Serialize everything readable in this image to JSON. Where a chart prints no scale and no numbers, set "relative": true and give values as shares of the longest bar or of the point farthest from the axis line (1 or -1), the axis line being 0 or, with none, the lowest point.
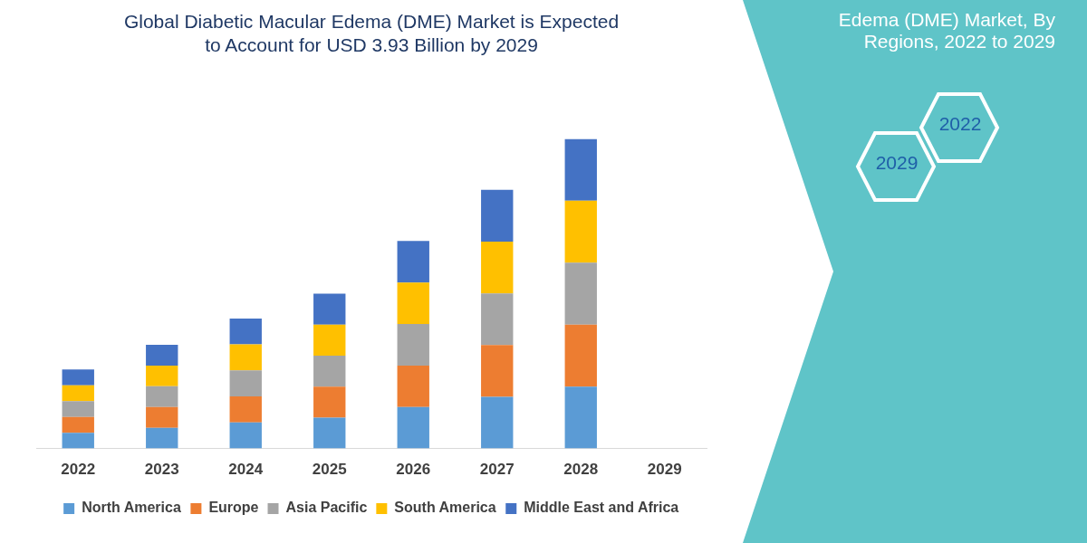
{
  "chart_data": {
    "type": "bar",
    "title": "Global Diabetic Macular Edema (DME) Market is Expected to Account for USD 3.93 Billion by 2029",
    "categories": [
      "2022",
      "2023",
      "2024",
      "2025",
      "2026",
      "2027",
      "2028",
      "2029"
    ],
    "stacked": true,
    "relative": true,
    "grid": false,
    "legend": "bottom",
    "series": [
      {
        "name": "North America",
        "color": "#5b9bd5",
        "values": [
          0.051,
          0.067,
          0.084,
          0.1,
          0.134,
          0.167,
          0.2,
          null
        ]
      },
      {
        "name": "Europe",
        "color": "#ed7d31",
        "values": [
          0.051,
          0.067,
          0.084,
          0.1,
          0.134,
          0.167,
          0.2,
          null
        ]
      },
      {
        "name": "Asia Pacific",
        "color": "#a5a5a5",
        "values": [
          0.051,
          0.067,
          0.084,
          0.1,
          0.134,
          0.167,
          0.2,
          null
        ]
      },
      {
        "name": "South America",
        "color": "#ffc000",
        "values": [
          0.051,
          0.067,
          0.084,
          0.1,
          0.134,
          0.167,
          0.2,
          null
        ]
      },
      {
        "name": "Middle East and Africa",
        "color": "#4472c4",
        "values": [
          0.051,
          0.067,
          0.084,
          0.1,
          0.134,
          0.167,
          0.2,
          null
        ]
      }
    ],
    "annotations": [
      "Edema (DME) Market, By Regions, 2022 to 2029",
      "2022",
      "2029"
    ]
  }
}
